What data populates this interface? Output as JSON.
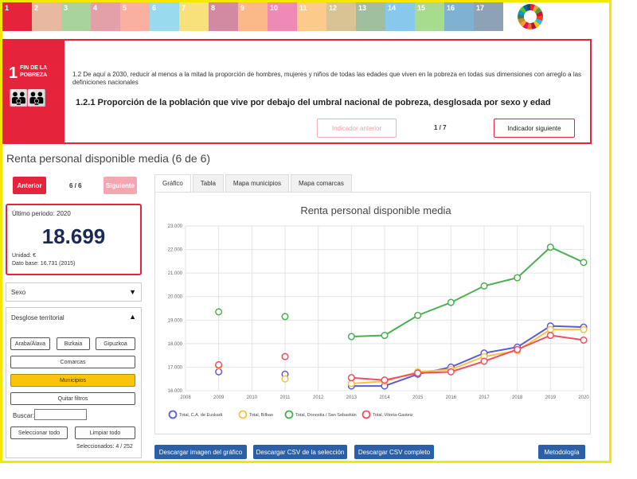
{
  "sdg_strip": {
    "goals": [
      {
        "num": "1",
        "color": "#e5243b"
      },
      {
        "num": "2",
        "color": "#e9b8a0"
      },
      {
        "num": "3",
        "color": "#a8d39c"
      },
      {
        "num": "4",
        "color": "#e4a0a8"
      },
      {
        "num": "5",
        "color": "#f9b0a0"
      },
      {
        "num": "6",
        "color": "#9adaef"
      },
      {
        "num": "7",
        "color": "#f8e07a"
      },
      {
        "num": "8",
        "color": "#d28aa2"
      },
      {
        "num": "9",
        "color": "#fbb98a"
      },
      {
        "num": "10",
        "color": "#ef8ab5"
      },
      {
        "num": "11",
        "color": "#fccb8c"
      },
      {
        "num": "12",
        "color": "#d9c293"
      },
      {
        "num": "13",
        "color": "#9fbf9f"
      },
      {
        "num": "14",
        "color": "#88c8ec"
      },
      {
        "num": "15",
        "color": "#a7dc8e"
      },
      {
        "num": "16",
        "color": "#7fb2d2"
      },
      {
        "num": "17",
        "color": "#8ea2b6"
      }
    ]
  },
  "goal": {
    "number": "1",
    "name": "FIN DE LA POBREZA",
    "target_text": "1.2 De aquí a 2030, reducir al menos a la mitad la proporción de hombres, mujeres y niños de todas las edades que viven en la pobreza en todas sus dimensiones con arreglo a las definiciones nacionales",
    "indicator_title": "1.2.1 Proporción de la población que vive por debajo del umbral nacional de pobreza, desglosada por sexo y edad",
    "prev_indicator_label": "Indicador anterior",
    "indicator_pager": "1 / 7",
    "next_indicator_label": "Indicador siguiente"
  },
  "series_nav": {
    "title": "Renta personal disponible media (6 de 6)",
    "prev_label": "Anterior",
    "pager": "6 / 6",
    "next_label": "Siguiente"
  },
  "kpi": {
    "period": "Último periodo: 2020",
    "value": "18.699",
    "unit": "Unidad: €",
    "base": "Dato base: 16.731 (2015)"
  },
  "filters": {
    "sexo_label": "Sexo",
    "territorial_label": "Desglose territorial",
    "territory_buttons": [
      "Araba/Álava",
      "Bizkaia",
      "Gipuzkoa"
    ],
    "comarcas_label": "Comarcas",
    "municipios_label": "Municipios",
    "quitar_label": "Quitar filtros",
    "buscar_label": "Buscar:",
    "select_all_label": "Seleccionar todo",
    "clear_all_label": "Limpiar todo",
    "selected_count": "Seleccionados: 4 / 252"
  },
  "tabs": [
    "Gráfico",
    "Tabla",
    "Mapa municipios",
    "Mapa comarcas"
  ],
  "downloads": {
    "image": "Descargar imagen del gráfico",
    "csv_sel": "Descargar CSV de la selección",
    "csv_full": "Descargar CSV completo",
    "method": "Metodología"
  },
  "chart_data": {
    "type": "line",
    "title": "Renta personal disponible media",
    "x": [
      2008,
      2009,
      2010,
      2011,
      2012,
      2013,
      2014,
      2015,
      2016,
      2017,
      2018,
      2019,
      2020
    ],
    "ylim": [
      16000,
      23000
    ],
    "ytick_labels": [
      "16.000",
      "17.000",
      "18.000",
      "19.000",
      "20.000",
      "21.000",
      "22.000",
      "23.000"
    ],
    "yticks": [
      16000,
      17000,
      18000,
      19000,
      20000,
      21000,
      22000,
      23000
    ],
    "series": [
      {
        "name": "Total, C.A. de Euskadi",
        "color": "#5b5bd6",
        "values": [
          null,
          16800,
          null,
          16700,
          null,
          16200,
          16200,
          16700,
          17000,
          17600,
          17850,
          18750,
          18699
        ]
      },
      {
        "name": "Total, Bilbao",
        "color": "#f6c14b",
        "values": [
          null,
          17050,
          null,
          16500,
          null,
          16300,
          16400,
          16800,
          16900,
          17450,
          17700,
          18600,
          18600
        ]
      },
      {
        "name": "Total, Donostia / San Sebastián",
        "color": "#4caf50",
        "values": [
          null,
          19350,
          null,
          19150,
          null,
          18300,
          18350,
          19200,
          19750,
          20450,
          20800,
          22100,
          21450
        ]
      },
      {
        "name": "Total, Vitoria-Gasteiz",
        "color": "#ef4f5f",
        "values": [
          null,
          17100,
          null,
          17450,
          null,
          16550,
          16450,
          16750,
          16800,
          17250,
          17750,
          18350,
          18150
        ]
      }
    ]
  }
}
